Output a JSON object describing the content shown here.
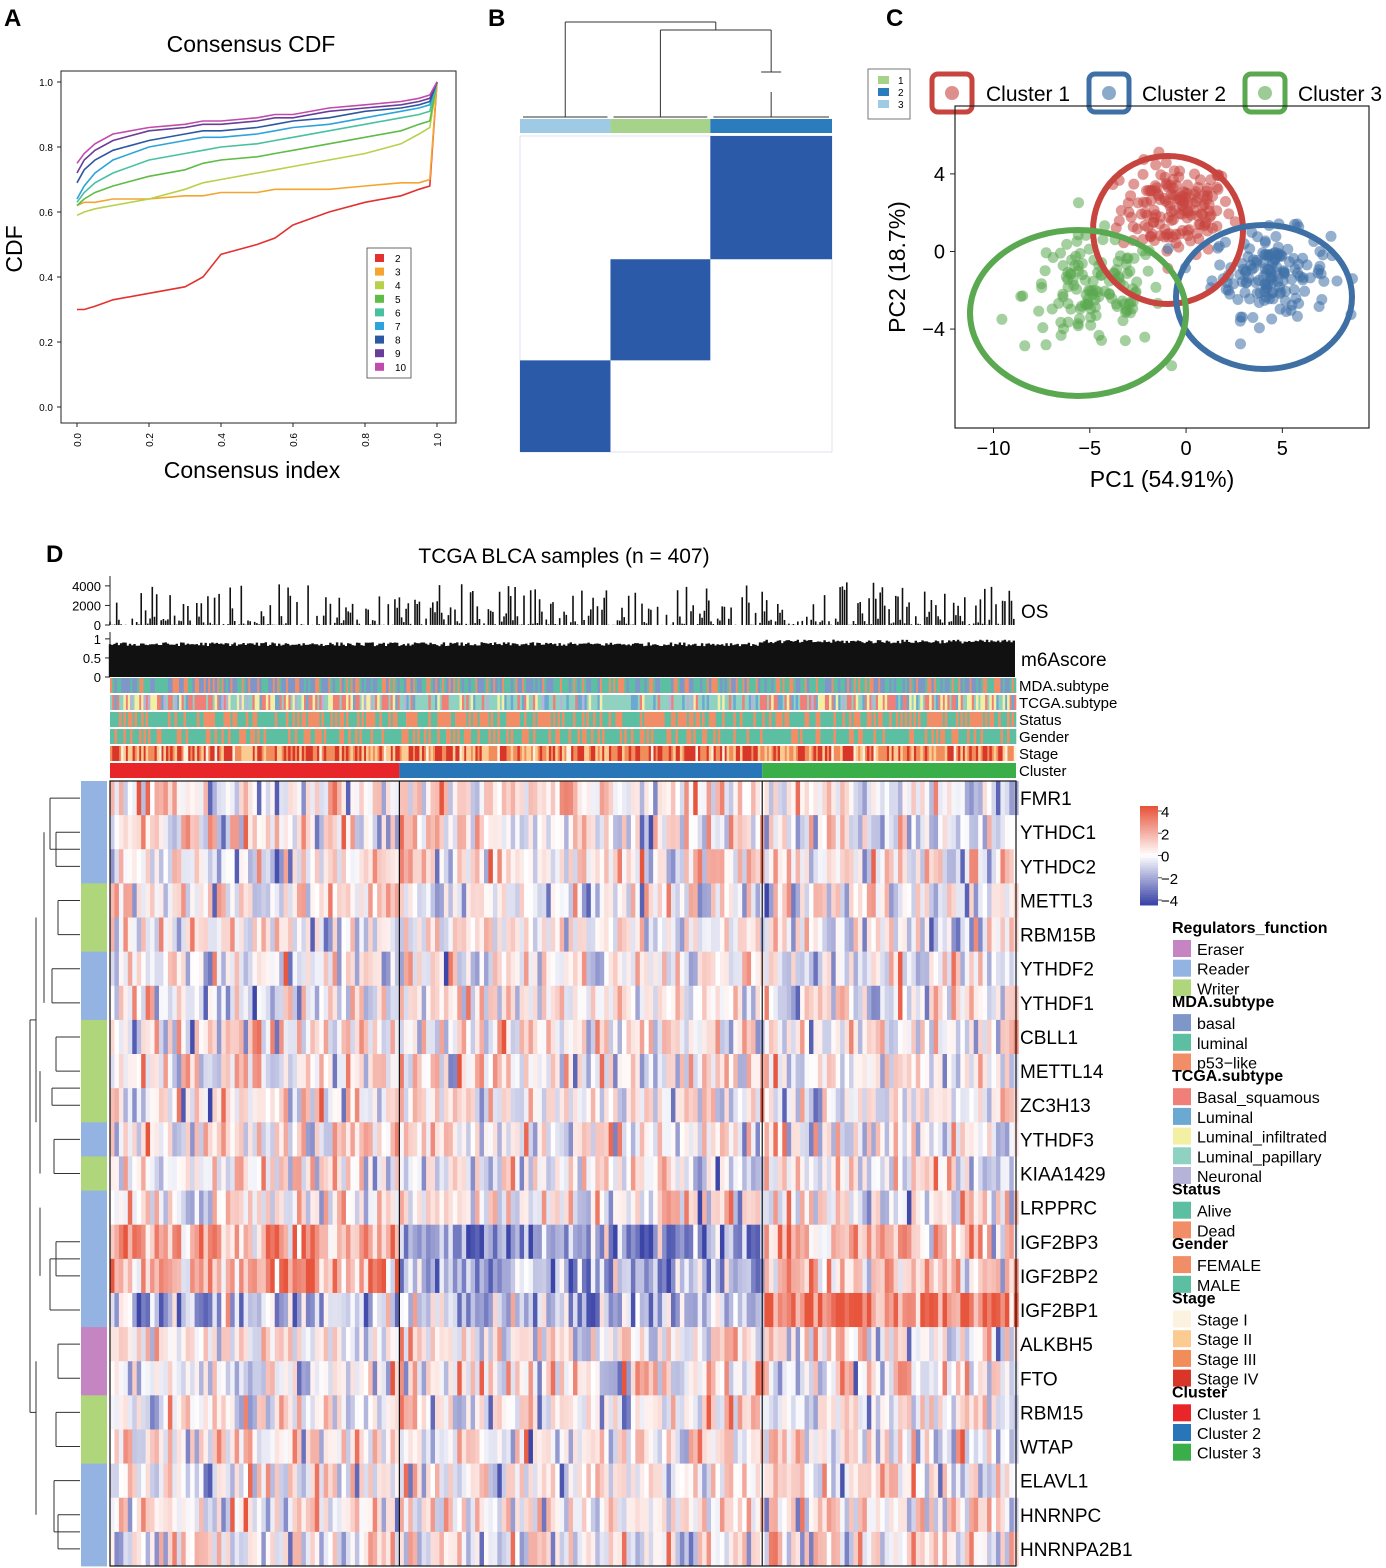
{
  "panels": {
    "a": "A",
    "b": "B",
    "c": "C",
    "d": "D"
  },
  "colors": {
    "cdf": [
      "#e3312f",
      "#f4a530",
      "#b7d14b",
      "#5fbc47",
      "#48c1a0",
      "#2ca3db",
      "#2c58a3",
      "#6a3d98",
      "#c04bac"
    ],
    "cluster": [
      "#c8453f",
      "#3e6fa5",
      "#5aa84f"
    ],
    "consensus": "#2a5aa8",
    "heat_low": "#3c46a8",
    "heat_mid": "#ffffff",
    "heat_high": "#e8553d",
    "reader": "#93b3e2",
    "writer": "#b0d67c",
    "eraser": "#c485c2"
  },
  "chart_data": [
    {
      "panel": "A",
      "type": "line",
      "title": "Consensus CDF",
      "xlabel": "Consensus index",
      "ylabel": "CDF",
      "xlim": [
        0,
        1
      ],
      "ylim": [
        0,
        1
      ],
      "xticks": [
        "0.0",
        "0.2",
        "0.4",
        "0.6",
        "0.8",
        "1.0"
      ],
      "yticks": [
        "0.0",
        "0.2",
        "0.4",
        "0.6",
        "0.8",
        "1.0"
      ],
      "legend_title": "",
      "x": [
        0,
        0.02,
        0.05,
        0.1,
        0.2,
        0.3,
        0.35,
        0.4,
        0.5,
        0.55,
        0.6,
        0.7,
        0.8,
        0.9,
        0.95,
        0.98,
        1.0
      ],
      "series": [
        {
          "name": "2",
          "values": [
            0.3,
            0.3,
            0.31,
            0.33,
            0.35,
            0.37,
            0.4,
            0.47,
            0.5,
            0.52,
            0.56,
            0.6,
            0.63,
            0.65,
            0.67,
            0.68,
            1.0
          ]
        },
        {
          "name": "3",
          "values": [
            0.62,
            0.63,
            0.63,
            0.64,
            0.64,
            0.65,
            0.65,
            0.66,
            0.66,
            0.67,
            0.67,
            0.67,
            0.68,
            0.69,
            0.69,
            0.7,
            1.0
          ]
        },
        {
          "name": "4",
          "values": [
            0.59,
            0.6,
            0.61,
            0.62,
            0.64,
            0.67,
            0.69,
            0.7,
            0.72,
            0.73,
            0.74,
            0.76,
            0.78,
            0.81,
            0.84,
            0.86,
            1.0
          ]
        },
        {
          "name": "5",
          "values": [
            0.62,
            0.64,
            0.66,
            0.68,
            0.71,
            0.73,
            0.75,
            0.76,
            0.77,
            0.78,
            0.79,
            0.81,
            0.83,
            0.85,
            0.87,
            0.88,
            1.0
          ]
        },
        {
          "name": "6",
          "values": [
            0.63,
            0.66,
            0.69,
            0.72,
            0.76,
            0.78,
            0.79,
            0.8,
            0.81,
            0.82,
            0.83,
            0.85,
            0.87,
            0.89,
            0.9,
            0.91,
            1.0
          ]
        },
        {
          "name": "7",
          "values": [
            0.64,
            0.68,
            0.72,
            0.76,
            0.8,
            0.82,
            0.83,
            0.83,
            0.84,
            0.85,
            0.86,
            0.87,
            0.89,
            0.91,
            0.92,
            0.93,
            1.0
          ]
        },
        {
          "name": "8",
          "values": [
            0.69,
            0.73,
            0.76,
            0.79,
            0.82,
            0.84,
            0.85,
            0.85,
            0.86,
            0.87,
            0.88,
            0.89,
            0.91,
            0.92,
            0.93,
            0.94,
            1.0
          ]
        },
        {
          "name": "9",
          "values": [
            0.72,
            0.76,
            0.79,
            0.82,
            0.85,
            0.86,
            0.87,
            0.87,
            0.88,
            0.89,
            0.89,
            0.91,
            0.92,
            0.93,
            0.94,
            0.95,
            1.0
          ]
        },
        {
          "name": "10",
          "values": [
            0.75,
            0.78,
            0.81,
            0.84,
            0.86,
            0.87,
            0.88,
            0.88,
            0.89,
            0.9,
            0.9,
            0.92,
            0.93,
            0.94,
            0.95,
            0.96,
            1.0
          ]
        }
      ]
    },
    {
      "panel": "B",
      "type": "heatmap",
      "legend": [
        "1",
        "2",
        "3"
      ],
      "cluster_order": [
        "3",
        "1",
        "2"
      ],
      "cluster_fractions": [
        0.29,
        0.32,
        0.39
      ]
    },
    {
      "panel": "C",
      "type": "scatter",
      "xlabel": "PC1 (54.91%)",
      "ylabel": "PC2 (18.7%)",
      "xlim": [
        -12,
        9.5
      ],
      "ylim": [
        -9.1,
        7.5
      ],
      "xticks": [
        -10,
        -5,
        0,
        5
      ],
      "yticks": [
        -4,
        0,
        4
      ],
      "legend": [
        "Cluster 1",
        "Cluster 2",
        "Cluster 3"
      ],
      "clusters": [
        {
          "name": "Cluster 1",
          "center": [
            -0.5,
            2.2
          ],
          "spread": [
            1.6,
            1.3
          ],
          "n": 160
        },
        {
          "name": "Cluster 2",
          "center": [
            4.4,
            -1.1
          ],
          "spread": [
            1.7,
            1.2
          ],
          "n": 150
        },
        {
          "name": "Cluster 3",
          "center": [
            -4.8,
            -2.2
          ],
          "spread": [
            2.0,
            1.6
          ],
          "n": 130
        }
      ]
    },
    {
      "panel": "D",
      "type": "heatmap",
      "title": "TCGA BLCA samples (n = 407)",
      "n_samples": 407,
      "cluster_fractions": [
        0.32,
        0.4,
        0.28
      ],
      "os_ticks": [
        "4000",
        "2000",
        "0"
      ],
      "score_ticks": [
        "1",
        "0.5",
        "0"
      ],
      "track_labels": [
        "OS",
        "m6Ascore"
      ],
      "annotation_rows": [
        "MDA.subtype",
        "TCGA.subtype",
        "Status",
        "Gender",
        "Stage",
        "Cluster"
      ],
      "genes": [
        "FMR1",
        "YTHDC1",
        "YTHDC2",
        "METTL3",
        "RBM15B",
        "YTHDF2",
        "YTHDF1",
        "CBLL1",
        "METTL14",
        "ZC3H13",
        "YTHDF3",
        "KIAA1429",
        "LRPPRC",
        "IGF2BP3",
        "IGF2BP2",
        "IGF2BP1",
        "ALKBH5",
        "FTO",
        "RBM15",
        "WTAP",
        "ELAVL1",
        "HNRNPC",
        "HNRNPA2B1"
      ],
      "gene_function": [
        "Reader",
        "Reader",
        "Reader",
        "Writer",
        "Writer",
        "Reader",
        "Reader",
        "Writer",
        "Writer",
        "Writer",
        "Reader",
        "Writer",
        "Reader",
        "Reader",
        "Reader",
        "Reader",
        "Eraser",
        "Eraser",
        "Writer",
        "Writer",
        "Reader",
        "Reader",
        "Reader"
      ],
      "gene_cluster_bias": [
        [
          0.05,
          0.1,
          -0.05
        ],
        [
          0.05,
          0.1,
          -0.05
        ],
        [
          -0.05,
          0.05,
          0.0
        ],
        [
          0.05,
          0.0,
          0.0
        ],
        [
          0.05,
          0.05,
          0.0
        ],
        [
          0.0,
          0.05,
          0.0
        ],
        [
          -0.05,
          0.05,
          0.0
        ],
        [
          0.1,
          0.1,
          0.0
        ],
        [
          0.05,
          0.05,
          0.0
        ],
        [
          0.0,
          0.05,
          -0.05
        ],
        [
          0.05,
          0.05,
          0.0
        ],
        [
          0.05,
          0.05,
          0.05
        ],
        [
          0.1,
          0.05,
          0.05
        ],
        [
          0.45,
          -0.55,
          0.4
        ],
        [
          0.45,
          -0.45,
          0.35
        ],
        [
          -0.25,
          -0.35,
          0.75
        ],
        [
          0.0,
          0.05,
          0.05
        ],
        [
          0.0,
          0.05,
          0.05
        ],
        [
          0.05,
          0.0,
          0.0
        ],
        [
          0.05,
          0.05,
          0.0
        ],
        [
          0.05,
          0.05,
          0.05
        ],
        [
          0.05,
          0.05,
          0.0
        ],
        [
          0.05,
          0.0,
          0.05
        ]
      ],
      "scale_ticks": [
        "4",
        "2",
        "0",
        "−2",
        "−4"
      ],
      "legend_groups": [
        {
          "title": "Regulators_function",
          "items": [
            {
              "label": "Eraser",
              "color": "#c485c2"
            },
            {
              "label": "Reader",
              "color": "#93b3e2"
            },
            {
              "label": "Writer",
              "color": "#b0d67c"
            }
          ]
        },
        {
          "title": "MDA.subtype",
          "items": [
            {
              "label": "basal",
              "color": "#7e96c8"
            },
            {
              "label": "luminal",
              "color": "#5cbfa1"
            },
            {
              "label": "p53−like",
              "color": "#f28e67"
            }
          ]
        },
        {
          "title": "TCGA.subtype",
          "items": [
            {
              "label": "Basal_squamous",
              "color": "#ef7f78"
            },
            {
              "label": "Luminal",
              "color": "#6ca9d2"
            },
            {
              "label": "Luminal_infiltrated",
              "color": "#f3f0a4"
            },
            {
              "label": "Luminal_papillary",
              "color": "#8fd2c2"
            },
            {
              "label": "Neuronal",
              "color": "#b6b3d8"
            }
          ]
        },
        {
          "title": "Status",
          "items": [
            {
              "label": "Alive",
              "color": "#5cbfa1"
            },
            {
              "label": "Dead",
              "color": "#f28e67"
            }
          ]
        },
        {
          "title": "Gender",
          "items": [
            {
              "label": "FEMALE",
              "color": "#f28e67"
            },
            {
              "label": "MALE",
              "color": "#5cbfa1"
            }
          ]
        },
        {
          "title": "Stage",
          "items": [
            {
              "label": "Stage I",
              "color": "#fdf1e0"
            },
            {
              "label": "Stage II",
              "color": "#fbcb91"
            },
            {
              "label": "Stage III",
              "color": "#f18d5a"
            },
            {
              "label": "Stage IV",
              "color": "#d9362a"
            }
          ]
        },
        {
          "title": "Cluster",
          "items": [
            {
              "label": "Cluster 1",
              "color": "#e8262a"
            },
            {
              "label": "Cluster 2",
              "color": "#2876b8"
            },
            {
              "label": "Cluster 3",
              "color": "#3aae49"
            }
          ]
        }
      ]
    }
  ]
}
